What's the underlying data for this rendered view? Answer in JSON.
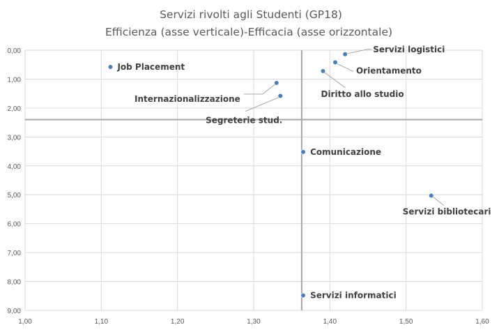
{
  "chart_data": {
    "type": "scatter",
    "title": "Servizi rivolti agli Studenti (GP18)",
    "subtitle": "Efficienza (asse verticale)-Efficacia (asse orizzontale)",
    "xlim": [
      1.0,
      1.6
    ],
    "ylim": [
      0,
      9
    ],
    "y_reversed": true,
    "x_ticks": [
      "1,00",
      "1,10",
      "1,20",
      "1,30",
      "1,40",
      "1,50",
      "1,60"
    ],
    "y_ticks": [
      "0,00",
      "1,00",
      "2,00",
      "3,00",
      "4,00",
      "5,00",
      "6,00",
      "7,00",
      "8,00",
      "9,00"
    ],
    "grid": true,
    "reference_lines": {
      "x": 1.363,
      "y": 2.4
    },
    "points": [
      {
        "label": "Job Placement",
        "x": 1.112,
        "y": 0.58
      },
      {
        "label": "Internazionalizzazione",
        "x": 1.33,
        "y": 1.13
      },
      {
        "label": "Segreterie stud.",
        "x": 1.335,
        "y": 1.58
      },
      {
        "label": "Servizi logistici",
        "x": 1.42,
        "y": 0.14
      },
      {
        "label": "Orientamento",
        "x": 1.407,
        "y": 0.42
      },
      {
        "label": "Diritto allo studio",
        "x": 1.391,
        "y": 0.72
      },
      {
        "label": "Comunicazione",
        "x": 1.365,
        "y": 3.52
      },
      {
        "label": "Servizi bibliotecari",
        "x": 1.533,
        "y": 5.03
      },
      {
        "label": "Servizi informatici",
        "x": 1.365,
        "y": 8.48
      }
    ],
    "colors": {
      "point": "#4a7ebb",
      "reference": "#a6a6a6",
      "grid": "#d9d9d9"
    }
  }
}
